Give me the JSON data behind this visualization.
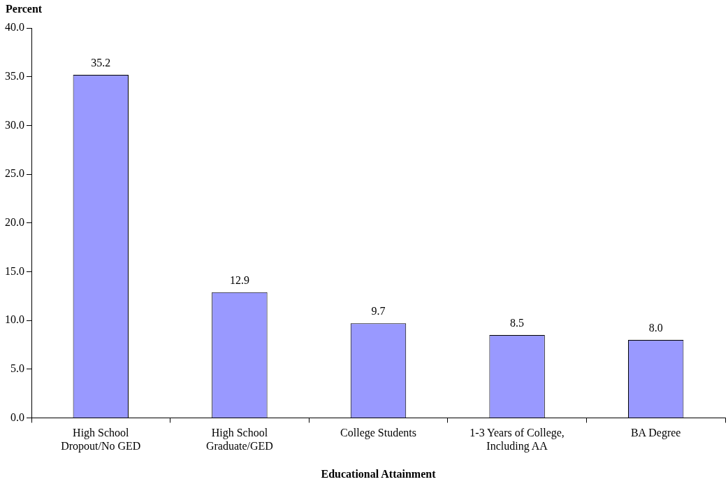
{
  "chart_data": {
    "type": "bar",
    "ylabel": "Percent",
    "xlabel": "Educational Attainment",
    "categories": [
      "High School Dropout/No GED",
      "High School Graduate/GED",
      "College Students",
      "1-3 Years of College, Including AA",
      "BA Degree"
    ],
    "values": [
      35.2,
      12.9,
      9.7,
      8.5,
      8.0
    ],
    "color": "#9999ff",
    "ylim": [
      0,
      40
    ],
    "yticks": [
      {
        "value": 0,
        "label": "0.0"
      },
      {
        "value": 5,
        "label": "5.0"
      },
      {
        "value": 10,
        "label": "10.0"
      },
      {
        "value": 15,
        "label": "15.0"
      },
      {
        "value": 20,
        "label": "20.0"
      },
      {
        "value": 25,
        "label": "25.0"
      },
      {
        "value": 30,
        "label": "30.0"
      },
      {
        "value": 35,
        "label": "35.0"
      },
      {
        "value": 40,
        "label": "40.0"
      }
    ],
    "value_labels": [
      "35.2",
      "12.9",
      "9.7",
      "8.5",
      "8.0"
    ],
    "grid": false,
    "legend": false
  }
}
